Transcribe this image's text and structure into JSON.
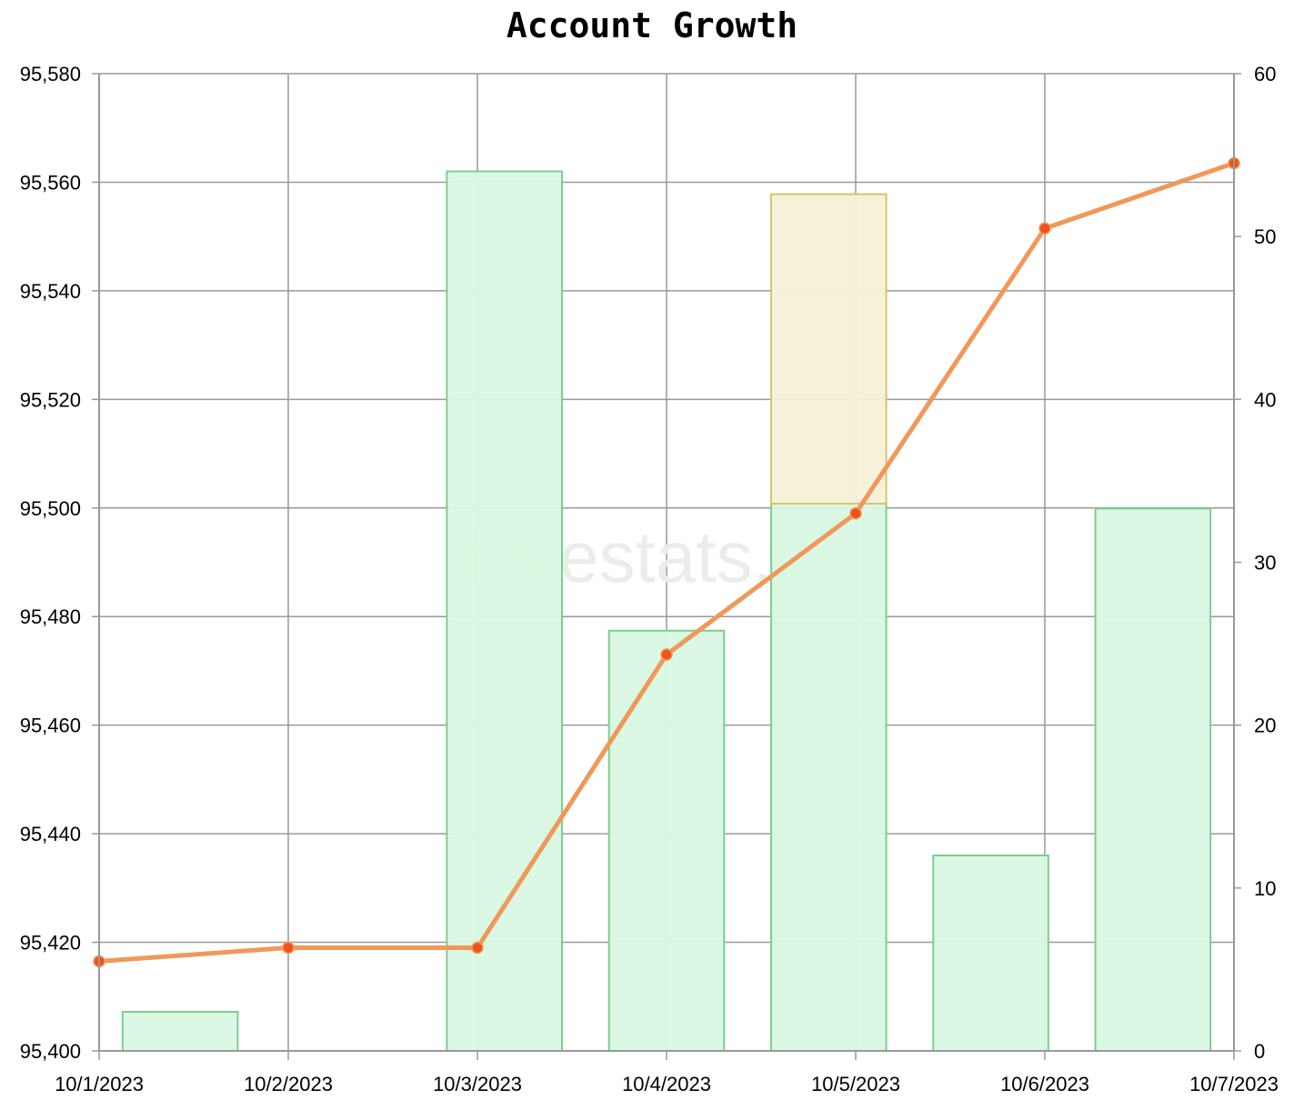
{
  "chart_data": {
    "type": "bar",
    "title": "Account Growth",
    "watermark": "hivestats.io",
    "categories": [
      "10/1/2023",
      "10/2/2023",
      "10/3/2023",
      "10/4/2023",
      "10/5/2023",
      "10/6/2023",
      "10/7/2023"
    ],
    "x_tick_labels": [
      "10/1/2023",
      "10/2/2023",
      "10/3/2023",
      "10/4/2023",
      "10/5/2023",
      "10/6/2023",
      "10/7/2023"
    ],
    "line_series": {
      "axis": "left",
      "values": [
        95416.5,
        95419,
        95419,
        95473,
        95499,
        95551.5,
        95563.5
      ]
    },
    "bar_series": [
      {
        "axis": "right",
        "stack": "green",
        "color": "#7ccf8e",
        "values": [
          2.4,
          0,
          54,
          25.8,
          33.6,
          12,
          33.3
        ]
      },
      {
        "axis": "right",
        "stack": "tan",
        "color": "#d9c36f",
        "values": [
          0,
          0,
          0,
          0,
          19,
          0,
          0
        ]
      }
    ],
    "left_axis": {
      "range": [
        95400,
        95580
      ],
      "ticks": [
        "95,400",
        "95,420",
        "95,440",
        "95,460",
        "95,480",
        "95,500",
        "95,520",
        "95,540",
        "95,560",
        "95,580"
      ]
    },
    "right_axis": {
      "range": [
        0,
        60
      ],
      "ticks": [
        "0",
        "10",
        "20",
        "30",
        "40",
        "50",
        "60"
      ]
    },
    "grid": true,
    "colors": {
      "line": "#f0985a",
      "point": "#f0521c",
      "bar_green_fill": "#d8f8e2",
      "bar_green_stroke": "#7ccf8e",
      "bar_tan_fill": "#f6f1d8",
      "bar_tan_stroke": "#d9c36f",
      "grid": "#999999"
    }
  }
}
